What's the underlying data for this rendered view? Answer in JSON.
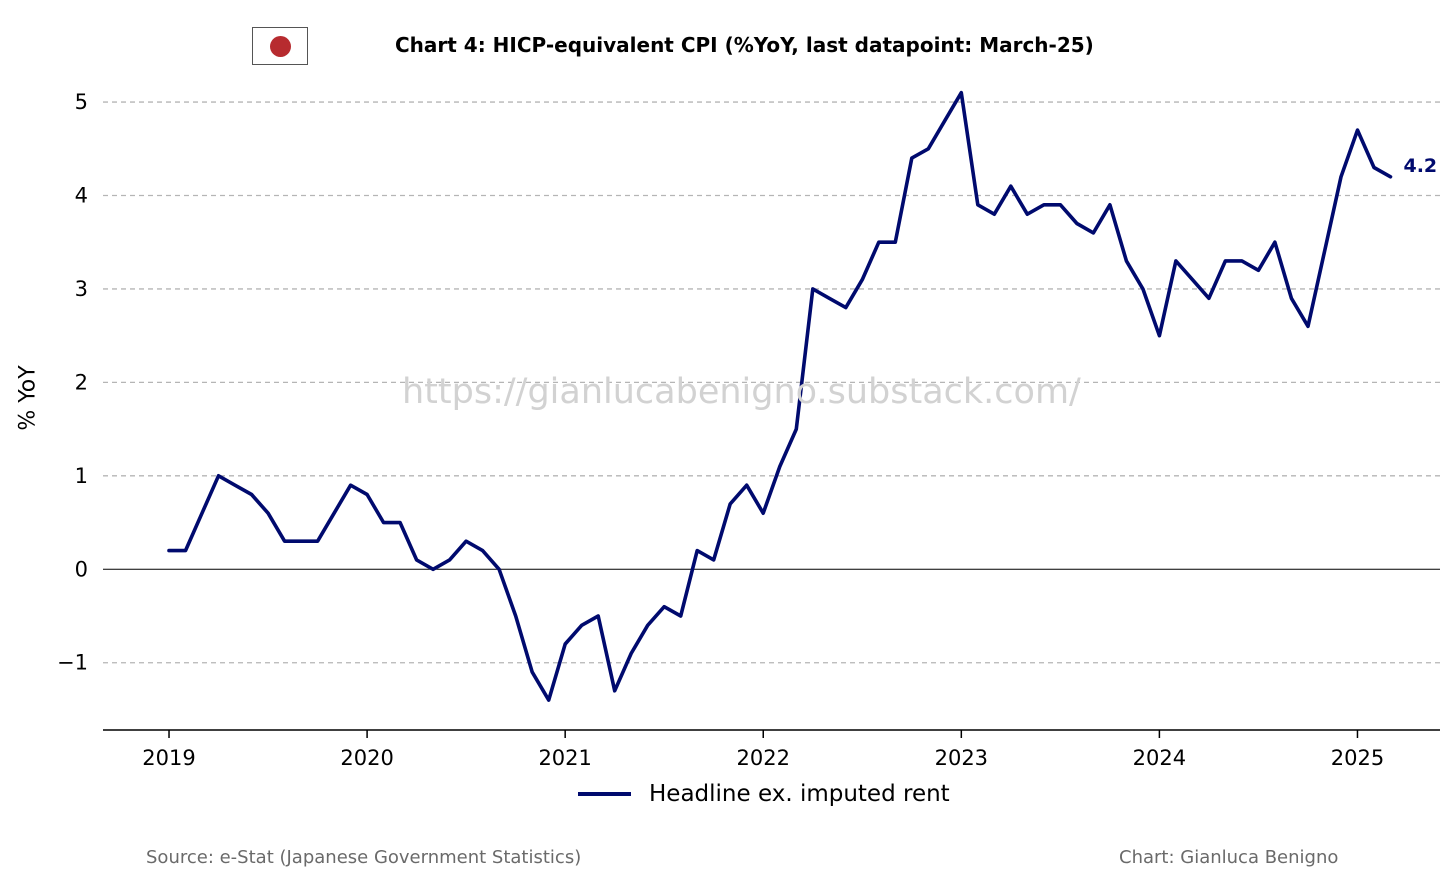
{
  "flag_icon": "japan-flag-icon",
  "title": "Chart 4: HICP-equivalent CPI (%YoY, last datapoint: March-25)",
  "ylabel": "% YoY",
  "watermark": "https://gianlucabenigno.substack.com/",
  "source": "Source: e-Stat (Japanese Government Statistics)",
  "credit": "Chart: Gianluca Benigno",
  "chart_data": {
    "type": "line",
    "title": "Chart 4: HICP-equivalent CPI (%YoY, last datapoint: March-25)",
    "xlabel": "",
    "ylabel": "% YoY",
    "ylim": [
      -1.72,
      5.45
    ],
    "xlim": [
      "2018-09",
      "2025-06"
    ],
    "x_ticks": [
      "2019",
      "2020",
      "2021",
      "2022",
      "2023",
      "2024",
      "2025"
    ],
    "y_ticks": [
      5,
      4,
      3,
      2,
      1,
      0,
      -1
    ],
    "y_tick_labels": [
      "5",
      "4",
      "3",
      "2",
      "1",
      "0",
      "−1"
    ],
    "grid": "horizontal dashed",
    "zero_line": true,
    "legend_position": "bottom-center",
    "series": [
      {
        "name": "Headline ex. imputed rent",
        "color": "#000a6e",
        "x": [
          "2019-01",
          "2019-02",
          "2019-03",
          "2019-04",
          "2019-05",
          "2019-06",
          "2019-07",
          "2019-08",
          "2019-09",
          "2019-10",
          "2019-11",
          "2019-12",
          "2020-01",
          "2020-02",
          "2020-03",
          "2020-04",
          "2020-05",
          "2020-06",
          "2020-07",
          "2020-08",
          "2020-09",
          "2020-10",
          "2020-11",
          "2020-12",
          "2021-01",
          "2021-02",
          "2021-03",
          "2021-04",
          "2021-05",
          "2021-06",
          "2021-07",
          "2021-08",
          "2021-09",
          "2021-10",
          "2021-11",
          "2021-12",
          "2022-01",
          "2022-02",
          "2022-03",
          "2022-04",
          "2022-05",
          "2022-06",
          "2022-07",
          "2022-08",
          "2022-09",
          "2022-10",
          "2022-11",
          "2022-12",
          "2023-01",
          "2023-02",
          "2023-03",
          "2023-04",
          "2023-05",
          "2023-06",
          "2023-07",
          "2023-08",
          "2023-09",
          "2023-10",
          "2023-11",
          "2023-12",
          "2024-01",
          "2024-02",
          "2024-03",
          "2024-04",
          "2024-05",
          "2024-06",
          "2024-07",
          "2024-08",
          "2024-09",
          "2024-10",
          "2024-11",
          "2024-12",
          "2025-01",
          "2025-02",
          "2025-03"
        ],
        "values": [
          0.2,
          0.2,
          0.6,
          1.0,
          0.9,
          0.8,
          0.6,
          0.3,
          0.3,
          0.3,
          0.6,
          0.9,
          0.8,
          0.5,
          0.5,
          0.1,
          0.0,
          0.1,
          0.3,
          0.2,
          0.0,
          -0.5,
          -1.1,
          -1.4,
          -0.8,
          -0.6,
          -0.5,
          -1.3,
          -0.9,
          -0.6,
          -0.4,
          -0.5,
          0.2,
          0.1,
          0.7,
          0.9,
          0.6,
          1.1,
          1.5,
          3.0,
          2.9,
          2.8,
          3.1,
          3.5,
          3.5,
          4.4,
          4.5,
          4.8,
          5.1,
          3.9,
          3.8,
          4.1,
          3.8,
          3.9,
          3.9,
          3.7,
          3.6,
          3.9,
          3.3,
          3.0,
          2.5,
          3.3,
          3.1,
          2.9,
          3.3,
          3.3,
          3.2,
          3.5,
          2.9,
          2.6,
          3.4,
          4.2,
          4.7,
          4.3,
          4.2
        ]
      }
    ],
    "annotations": [
      {
        "text": "4.2",
        "at": "last point"
      }
    ]
  }
}
